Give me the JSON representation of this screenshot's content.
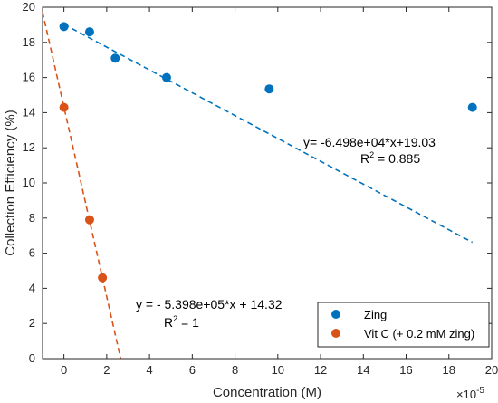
{
  "chart_data": {
    "type": "scatter",
    "xlabel": "Concentration (M)",
    "ylabel": "Collection Efficiency (%)",
    "x_multiplier_label": "×10",
    "x_multiplier_exponent": "-5",
    "xlim": [
      -1,
      20
    ],
    "ylim": [
      0,
      20
    ],
    "x_ticks": [
      0,
      2,
      4,
      6,
      8,
      10,
      12,
      14,
      16,
      18,
      20
    ],
    "y_ticks": [
      0,
      2,
      4,
      6,
      8,
      10,
      12,
      14,
      16,
      18,
      20
    ],
    "grid": false,
    "legend_position": "bottom-right",
    "series": [
      {
        "name": "Zing",
        "color": "#0072BD",
        "x": [
          0,
          1.2,
          2.4,
          4.8,
          9.6,
          19.1
        ],
        "y": [
          18.9,
          18.6,
          17.1,
          16.0,
          15.35,
          14.3
        ],
        "fit": {
          "slope": -0.6498,
          "intercept": 19.03,
          "x_range": [
            0,
            19.1
          ],
          "equation": "y= -6.498e+04*x+19.03",
          "r2_label": "R",
          "r2_value": " = 0.885"
        }
      },
      {
        "name": "Vit C (+ 0.2 mM zing)",
        "color": "#D95319",
        "x": [
          0,
          1.2,
          1.8
        ],
        "y": [
          14.3,
          7.9,
          4.6
        ],
        "fit": {
          "slope": -5.398,
          "intercept": 14.32,
          "x_range": [
            -1,
            2.65
          ],
          "equation": "y = - 5.398e+05*x + 14.32",
          "r2_label": "R",
          "r2_value": " = 1"
        }
      }
    ]
  }
}
